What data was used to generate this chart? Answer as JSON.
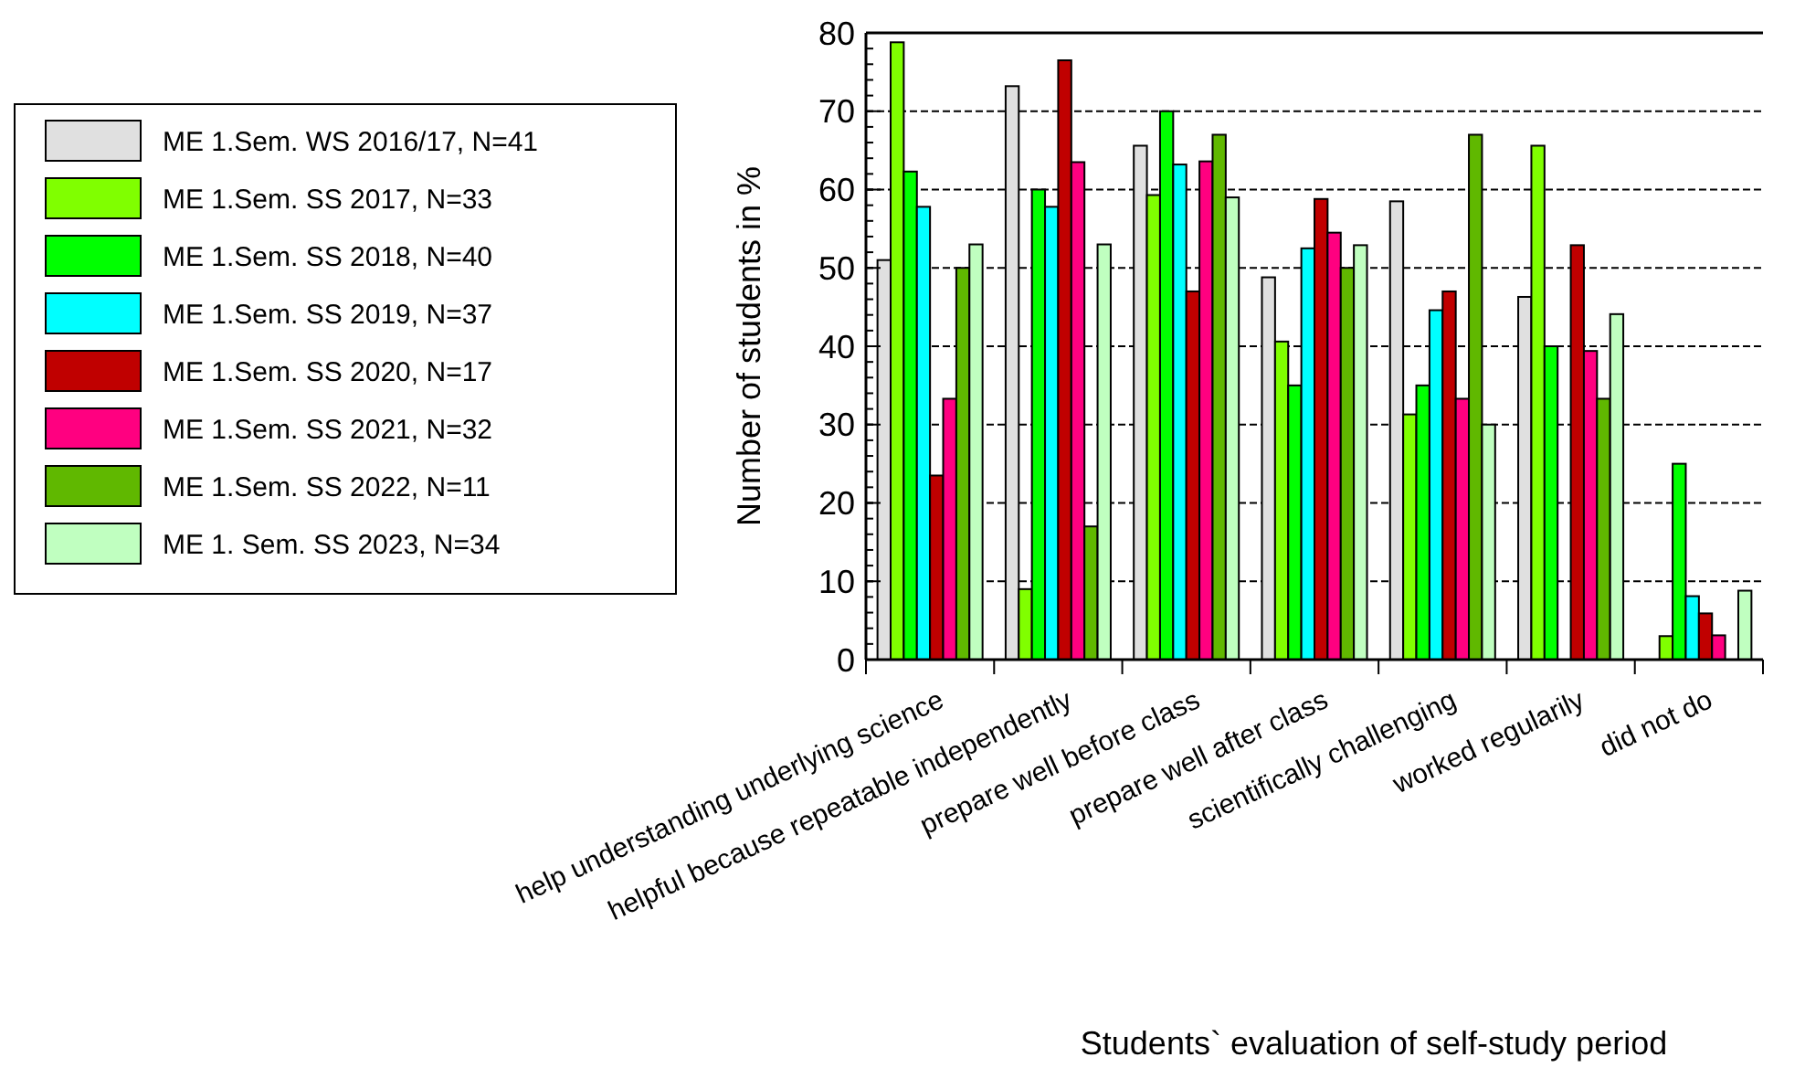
{
  "chart_data": {
    "type": "bar",
    "xlabel": "Students` evaluation of self-study period",
    "ylabel": "Number of students in %",
    "categories": [
      "help understanding underlying science",
      "helpful because repeatable independently",
      "prepare well before class",
      "prepare well after class",
      "scientifically challenging",
      "worked regularily",
      "did not do"
    ],
    "series": [
      {
        "name": "ME 1.Sem. WS 2016/17, N=41",
        "color": "#e0e0e0",
        "values": [
          51,
          73.2,
          65.6,
          48.8,
          58.5,
          46.3,
          0
        ]
      },
      {
        "name": "ME 1.Sem. SS 2017, N=33",
        "color": "#80ff00",
        "values": [
          78.8,
          9,
          59.3,
          40.6,
          31.3,
          65.6,
          3
        ]
      },
      {
        "name": "ME 1.Sem. SS 2018, N=40",
        "color": "#00ff00",
        "values": [
          62.3,
          60,
          70,
          35,
          35,
          40,
          25
        ]
      },
      {
        "name": "ME 1.Sem. SS 2019, N=37",
        "color": "#00ffff",
        "values": [
          57.8,
          57.8,
          63.2,
          52.5,
          44.6,
          0,
          8.1
        ]
      },
      {
        "name": "ME 1.Sem. SS 2020, N=17",
        "color": "#c00000",
        "values": [
          23.5,
          76.5,
          47,
          58.8,
          47,
          52.9,
          5.9
        ]
      },
      {
        "name": "ME 1.Sem. SS 2021, N=32",
        "color": "#ff0080",
        "values": [
          33.3,
          63.5,
          63.6,
          54.5,
          33.3,
          39.4,
          3.1
        ]
      },
      {
        "name": "ME 1.Sem. SS 2022, N=11",
        "color": "#60b800",
        "values": [
          50,
          17,
          67,
          50,
          67,
          33.3,
          0
        ]
      },
      {
        "name": "ME 1. Sem. SS 2023, N=34",
        "color": "#c0ffc0",
        "values": [
          53,
          53,
          59,
          52.9,
          30,
          44.1,
          8.8
        ]
      }
    ],
    "ylim": [
      0,
      80
    ],
    "yticks": [
      0,
      10,
      20,
      30,
      40,
      50,
      60,
      70,
      80
    ],
    "grid": "y",
    "legend": "left"
  }
}
